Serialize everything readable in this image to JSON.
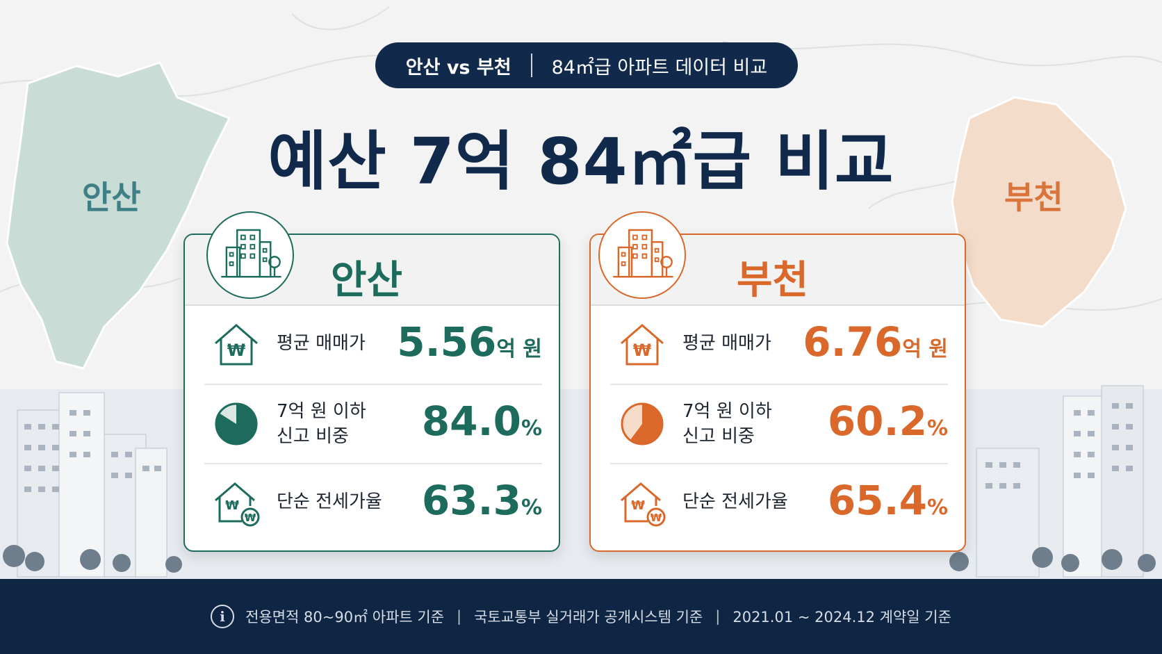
{
  "header": {
    "pill_strong": "안산 vs 부천",
    "pill_sub": "84㎡급 아파트 데이터 비교",
    "headline": "예산 7억 84㎡급 비교"
  },
  "map_labels": {
    "left": "안산",
    "right": "부천"
  },
  "cities": [
    {
      "name": "안산",
      "accent": "#1d6b5c",
      "rows": [
        {
          "label": "평균 매매가",
          "value": "5.56",
          "unit": "억 원",
          "icon": "house-won-icon"
        },
        {
          "label_line1": "7억 원 이하",
          "label_line2": "신고 비중",
          "value": "84.0",
          "unit": "%",
          "icon": "pie-chart-icon",
          "pie_fraction": 0.84
        },
        {
          "label": "단순 전세가율",
          "value": "63.3",
          "unit": "%",
          "icon": "house-won-coin-icon"
        }
      ]
    },
    {
      "name": "부천",
      "accent": "#d9682a",
      "rows": [
        {
          "label": "평균 매매가",
          "value": "6.76",
          "unit": "억 원",
          "icon": "house-won-icon"
        },
        {
          "label_line1": "7억 원 이하",
          "label_line2": "신고 비중",
          "value": "60.2",
          "unit": "%",
          "icon": "pie-chart-icon",
          "pie_fraction": 0.602
        },
        {
          "label": "단순 전세가율",
          "value": "65.4",
          "unit": "%",
          "icon": "house-won-coin-icon"
        }
      ]
    }
  ],
  "footer": {
    "info_icon": "info-icon",
    "note1": "전용면적 80~90㎡ 아파트 기준",
    "note2": "국토교통부 실거래가 공개시스템 기준",
    "note3": "2021.01 ~ 2024.12 계약일 기준"
  }
}
